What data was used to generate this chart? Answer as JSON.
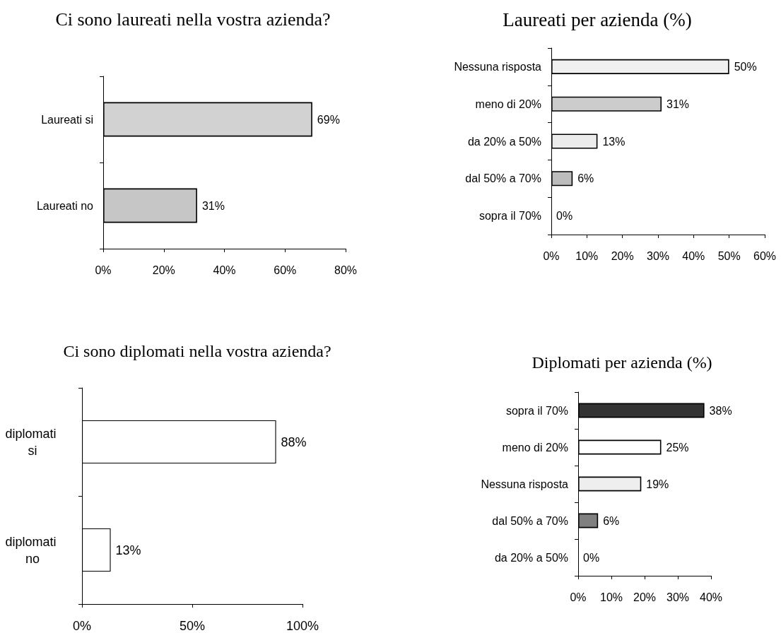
{
  "chart_data": [
    {
      "type": "bar",
      "orientation": "horizontal",
      "title": "Ci sono laureati nella vostra azienda?",
      "categories": [
        "Laureati si",
        "Laureati no"
      ],
      "values": [
        69,
        31
      ],
      "colors": [
        "#d2d2d2",
        "#c6c6c6"
      ],
      "value_labels": [
        "69%",
        "31%"
      ],
      "xlim": [
        0,
        80
      ],
      "xticks": [
        {
          "value": 0,
          "label": "0%"
        },
        {
          "value": 20,
          "label": "20%"
        },
        {
          "value": 40,
          "label": "40%"
        },
        {
          "value": 60,
          "label": "60%"
        },
        {
          "value": 80,
          "label": "80%"
        }
      ],
      "grid": false
    },
    {
      "type": "bar",
      "orientation": "horizontal",
      "title": "Laureati per azienda (%)",
      "categories": [
        "Nessuna risposta",
        "meno di 20%",
        "da 20% a 50%",
        "dal 50% a 70%",
        "sopra il 70%"
      ],
      "values": [
        50,
        31,
        13,
        6,
        0
      ],
      "colors": [
        "#f0f0f0",
        "#cccccc",
        "#ececec",
        "#bdbdbd",
        "#ffffff"
      ],
      "value_labels": [
        "50%",
        "31%",
        "13%",
        "6%",
        "0%"
      ],
      "xlim": [
        0,
        60
      ],
      "xticks": [
        {
          "value": 0,
          "label": "0%"
        },
        {
          "value": 10,
          "label": "10%"
        },
        {
          "value": 20,
          "label": "20%"
        },
        {
          "value": 30,
          "label": "30%"
        },
        {
          "value": 40,
          "label": "40%"
        },
        {
          "value": 50,
          "label": "50%"
        },
        {
          "value": 60,
          "label": "60%"
        }
      ],
      "grid": false
    },
    {
      "type": "bar",
      "orientation": "horizontal",
      "title": "Ci sono diplomati nella vostra azienda?",
      "categories": [
        "diplomati si",
        "diplomati no"
      ],
      "values": [
        88,
        13
      ],
      "colors": [
        "#ffffff",
        "#ffffff"
      ],
      "value_labels": [
        "88%",
        "13%"
      ],
      "xlim": [
        0,
        100
      ],
      "xticks": [
        {
          "value": 0,
          "label": "0%"
        },
        {
          "value": 50,
          "label": "50%"
        },
        {
          "value": 100,
          "label": "100%"
        }
      ],
      "grid": false
    },
    {
      "type": "bar",
      "orientation": "horizontal",
      "title": "Diplomati per azienda (%)",
      "categories": [
        "sopra il 70%",
        "meno di 20%",
        "Nessuna risposta",
        "dal 50% a 70%",
        "da 20% a 50%"
      ],
      "values": [
        38,
        25,
        19,
        6,
        0
      ],
      "colors": [
        "#333333",
        "#ffffff",
        "#eeeeee",
        "#808080",
        "#ffffff"
      ],
      "value_labels": [
        "38%",
        "25%",
        "19%",
        "6%",
        "0%"
      ],
      "xlim": [
        0,
        40
      ],
      "xticks": [
        {
          "value": 0,
          "label": "0%"
        },
        {
          "value": 10,
          "label": "10%"
        },
        {
          "value": 20,
          "label": "20%"
        },
        {
          "value": 30,
          "label": "30%"
        },
        {
          "value": 40,
          "label": "40%"
        }
      ],
      "grid": false
    }
  ]
}
